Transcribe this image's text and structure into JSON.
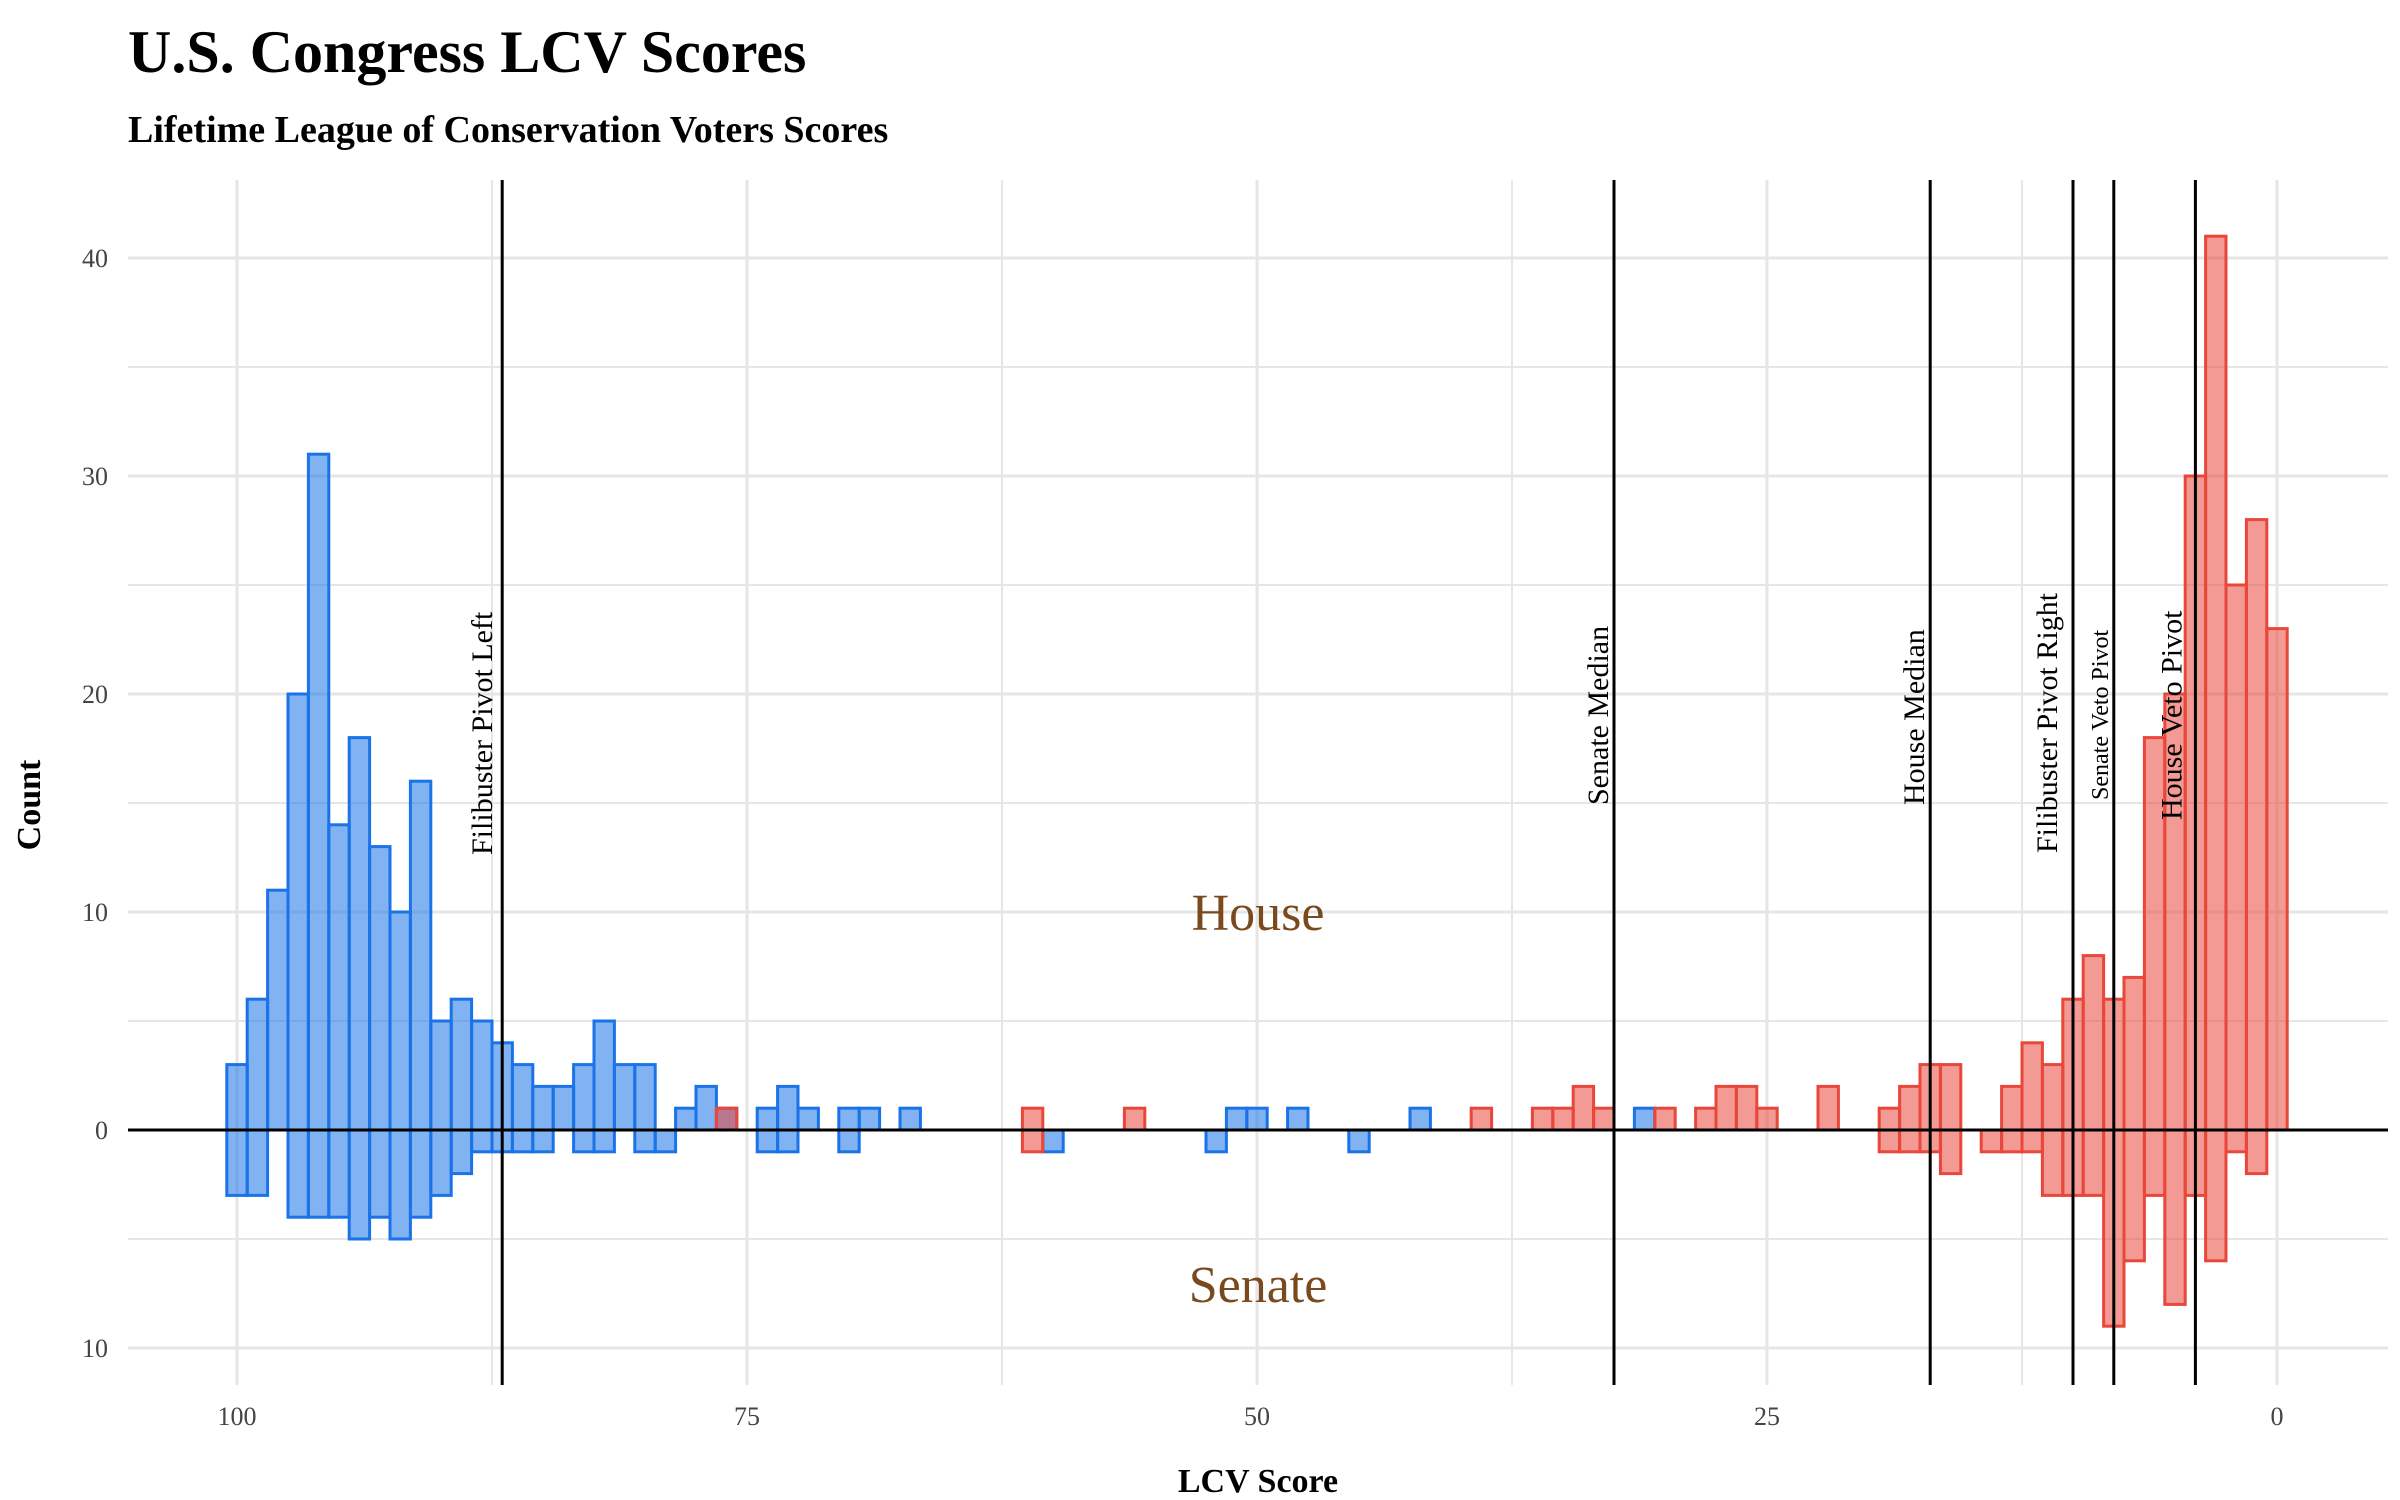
{
  "chart_data": {
    "type": "bar",
    "title": "U.S. Congress LCV Scores",
    "subtitle": "Lifetime League of Conservation Voters Scores",
    "xlabel": "LCV Score",
    "ylabel": "Count",
    "xlim": [
      105,
      -5
    ],
    "x_reversed": true,
    "ylim": [
      -11,
      44
    ],
    "x_ticks": [
      100,
      75,
      50,
      25,
      0
    ],
    "x_tick_labels": [
      "100",
      "75",
      "50",
      "25",
      "0"
    ],
    "y_ticks": [
      -10,
      0,
      10,
      20,
      30,
      40
    ],
    "y_tick_labels": [
      "10",
      "0",
      "10",
      "20",
      "30",
      "40"
    ],
    "bin_width": 1,
    "grid": true,
    "colors": {
      "democrat": "#1a73e8",
      "republican": "#e8473a"
    },
    "house_label": "House",
    "senate_label": "Senate",
    "series": [
      {
        "chamber": "House",
        "party": "democrat",
        "x": [
          100,
          99,
          98,
          97,
          96,
          95,
          94,
          93,
          92,
          91,
          90,
          89,
          88,
          87,
          86,
          85,
          84,
          83,
          82,
          81,
          80,
          78,
          77,
          76,
          74,
          73,
          72,
          70,
          69,
          67,
          51,
          50,
          48,
          42,
          31
        ],
        "values": [
          3,
          6,
          11,
          20,
          31,
          14,
          18,
          13,
          10,
          16,
          5,
          6,
          5,
          4,
          3,
          2,
          2,
          3,
          5,
          3,
          3,
          1,
          2,
          1,
          1,
          2,
          1,
          1,
          1,
          1,
          1,
          1,
          1,
          1,
          1
        ]
      },
      {
        "chamber": "House",
        "party": "republican",
        "x": [
          76,
          61,
          56,
          39,
          36,
          35,
          34,
          33,
          30,
          28,
          27,
          26,
          25,
          22,
          19,
          18,
          17,
          16,
          13,
          12,
          11,
          10,
          9,
          8,
          7,
          6,
          5,
          4,
          3,
          2,
          1,
          0
        ],
        "values": [
          1,
          1,
          1,
          1,
          1,
          1,
          2,
          1,
          1,
          1,
          2,
          2,
          1,
          2,
          1,
          2,
          3,
          3,
          2,
          4,
          3,
          6,
          8,
          6,
          7,
          18,
          20,
          30,
          41,
          25,
          28,
          23
        ]
      },
      {
        "chamber": "Senate",
        "party": "democrat",
        "x": [
          100,
          99,
          97,
          96,
          95,
          94,
          93,
          92,
          91,
          90,
          89,
          88,
          87,
          86,
          85,
          83,
          82,
          80,
          79,
          74,
          73,
          70,
          60,
          52,
          45
        ],
        "values": [
          3,
          3,
          4,
          4,
          4,
          5,
          4,
          5,
          4,
          3,
          2,
          1,
          1,
          1,
          1,
          1,
          1,
          1,
          1,
          1,
          1,
          1,
          1,
          1,
          1
        ]
      },
      {
        "chamber": "Senate",
        "party": "republican",
        "x": [
          61,
          19,
          18,
          17,
          16,
          14,
          13,
          12,
          11,
          10,
          9,
          8,
          7,
          6,
          5,
          4,
          3,
          2,
          1
        ],
        "values": [
          1,
          1,
          1,
          1,
          2,
          1,
          1,
          1,
          3,
          3,
          3,
          9,
          6,
          3,
          8,
          3,
          6,
          1,
          2
        ]
      }
    ],
    "reference_lines": [
      {
        "label": "Filibuster Pivot Left",
        "x": 87
      },
      {
        "label": "Senate Median",
        "x": 32.5
      },
      {
        "label": "House Median",
        "x": 17
      },
      {
        "label": "Filibuster Pivot Right",
        "x": 10
      },
      {
        "label": "Senate Veto Pivot",
        "x": 8
      },
      {
        "label": "House Veto Pivot",
        "x": 4
      }
    ]
  }
}
